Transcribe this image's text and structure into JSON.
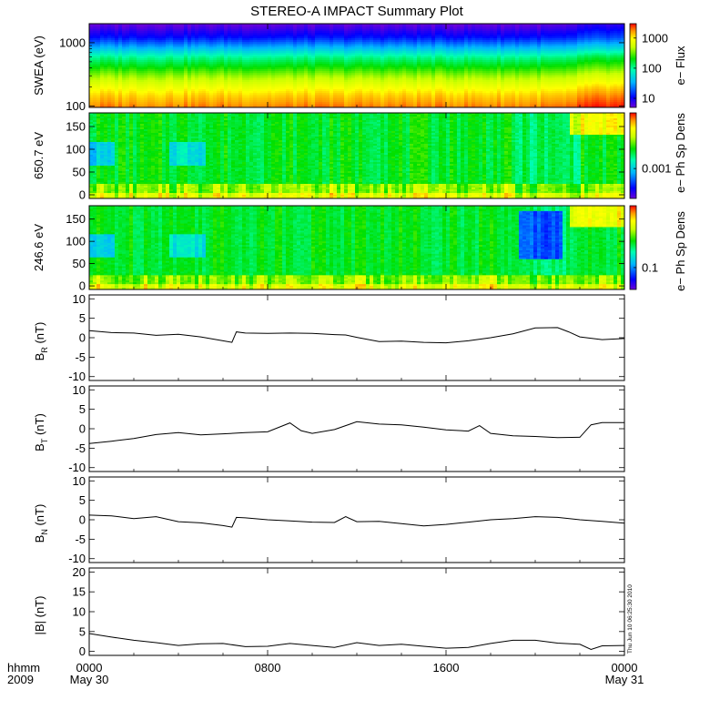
{
  "title": "STEREO-A IMPACT Summary Plot",
  "time_axis": {
    "corner_labels": [
      "hhmm",
      "2009"
    ],
    "ticks": [
      {
        "hour": 0,
        "label": "0000",
        "sub": "May 30"
      },
      {
        "hour": 8,
        "label": "0800",
        "sub": ""
      },
      {
        "hour": 16,
        "label": "1600",
        "sub": ""
      },
      {
        "hour": 24,
        "label": "0000",
        "sub": "May 31"
      }
    ],
    "range_hours": [
      0,
      24
    ],
    "stamp": "Thu Jun 10 06:25:30 2010"
  },
  "chart_data": [
    {
      "type": "heatmap",
      "ylabel": "SWEA (eV)",
      "yscale": "log",
      "ylim": [
        95,
        2000
      ],
      "yticks": [
        {
          "v": 1000,
          "label": "1000"
        },
        {
          "v": 100,
          "label": "100"
        }
      ],
      "colorbar": {
        "label": "e− Flux",
        "scale": "log",
        "range": [
          5,
          3000
        ],
        "ticks": [
          {
            "v": 1000,
            "label": "1000"
          },
          {
            "v": 100,
            "label": "100"
          },
          {
            "v": 10,
            "label": "10"
          }
        ]
      },
      "energy_profile_ev": [
        100,
        150,
        200,
        300,
        400,
        600,
        800,
        1200,
        2000
      ],
      "flux_profile": [
        1800,
        1200,
        800,
        400,
        220,
        100,
        40,
        12,
        5
      ]
    },
    {
      "type": "heatmap",
      "ylabel": "650.7 eV",
      "ylim": [
        -8,
        180
      ],
      "yticks": [
        {
          "v": 150,
          "label": "150"
        },
        {
          "v": 100,
          "label": "100"
        },
        {
          "v": 50,
          "label": "50"
        },
        {
          "v": 0,
          "label": "0"
        }
      ],
      "colorbar": {
        "label": "e− Ph Sp Dens",
        "scale": "log",
        "range": [
          0.0002,
          0.02
        ],
        "ticks": [
          {
            "v": 0.001,
            "label": "0.001"
          }
        ]
      }
    },
    {
      "type": "heatmap",
      "ylabel": "246.6 eV",
      "ylim": [
        -8,
        180
      ],
      "yticks": [
        {
          "v": 150,
          "label": "150"
        },
        {
          "v": 100,
          "label": "100"
        },
        {
          "v": 50,
          "label": "50"
        },
        {
          "v": 0,
          "label": "0"
        }
      ],
      "colorbar": {
        "label": "e− Ph Sp Dens",
        "scale": "log",
        "range": [
          0.03,
          3
        ],
        "ticks": [
          {
            "v": 0.1,
            "label": "0.1"
          }
        ]
      }
    },
    {
      "type": "line",
      "ylabel": "B",
      "ysub": "R",
      "yunit": "(nT)",
      "ylim": [
        -11,
        11
      ],
      "yticks": [
        10,
        5,
        0,
        -5,
        -10
      ],
      "x": [
        0,
        1,
        2,
        3,
        4,
        5,
        6,
        6.4,
        6.6,
        7,
        8,
        9,
        10,
        11,
        11.5,
        12,
        13,
        14,
        15,
        16,
        17,
        18,
        19,
        20,
        21,
        21.5,
        22,
        23,
        24
      ],
      "y": [
        1.8,
        1.3,
        1.2,
        0.6,
        0.9,
        0.2,
        -0.8,
        -1.2,
        1.5,
        1.2,
        1.1,
        1.2,
        1.1,
        0.8,
        0.7,
        0.1,
        -1.0,
        -0.9,
        -1.2,
        -1.3,
        -0.8,
        0.0,
        1.0,
        2.5,
        2.6,
        1.5,
        0.2,
        -0.5,
        -0.2
      ]
    },
    {
      "type": "line",
      "ylabel": "B",
      "ysub": "T",
      "yunit": "(nT)",
      "ylim": [
        -11,
        11
      ],
      "yticks": [
        10,
        5,
        0,
        -5,
        -10
      ],
      "x": [
        0,
        1,
        2,
        3,
        4,
        5,
        6,
        7,
        8,
        9,
        9.5,
        10,
        11,
        12,
        13,
        14,
        15,
        16,
        17,
        17.5,
        18,
        19,
        20,
        21,
        22,
        22.5,
        23,
        24
      ],
      "y": [
        -3.8,
        -3.2,
        -2.5,
        -1.5,
        -1.0,
        -1.6,
        -1.3,
        -1.0,
        -0.8,
        1.5,
        -0.5,
        -1.2,
        -0.2,
        1.8,
        1.2,
        1.0,
        0.4,
        -0.3,
        -0.6,
        0.8,
        -1.2,
        -1.8,
        -2.0,
        -2.3,
        -2.2,
        1.0,
        1.6,
        1.6
      ]
    },
    {
      "type": "line",
      "ylabel": "B",
      "ysub": "N",
      "yunit": "(nT)",
      "ylim": [
        -11,
        11
      ],
      "yticks": [
        10,
        5,
        0,
        -5,
        -10
      ],
      "x": [
        0,
        1,
        2,
        3,
        4,
        5,
        6,
        6.4,
        6.6,
        7,
        8,
        9,
        10,
        11,
        11.5,
        12,
        13,
        14,
        15,
        16,
        17,
        18,
        19,
        20,
        21,
        22,
        23,
        24
      ],
      "y": [
        1.2,
        1.0,
        0.3,
        0.8,
        -0.5,
        -0.8,
        -1.5,
        -1.9,
        0.6,
        0.5,
        0.0,
        -0.3,
        -0.6,
        -0.7,
        0.8,
        -0.5,
        -0.4,
        -1.0,
        -1.6,
        -1.2,
        -0.6,
        0.0,
        0.3,
        0.8,
        0.6,
        0.0,
        -0.4,
        -0.9
      ]
    },
    {
      "type": "line",
      "ylabel": "|B|",
      "ysub": "",
      "yunit": "(nT)",
      "ylim": [
        -1,
        21
      ],
      "yticks": [
        20,
        15,
        10,
        5,
        0
      ],
      "x": [
        0,
        1,
        2,
        3,
        4,
        5,
        6,
        7,
        8,
        9,
        10,
        11,
        12,
        13,
        14,
        15,
        16,
        17,
        18,
        19,
        20,
        21,
        22,
        22.5,
        23,
        24
      ],
      "y": [
        4.5,
        3.6,
        2.8,
        2.2,
        1.5,
        1.9,
        2.0,
        1.2,
        1.3,
        2.0,
        1.5,
        1.0,
        2.2,
        1.5,
        1.8,
        1.3,
        0.8,
        1.0,
        2.0,
        2.8,
        2.8,
        2.1,
        1.8,
        0.5,
        1.4,
        1.5
      ]
    }
  ]
}
